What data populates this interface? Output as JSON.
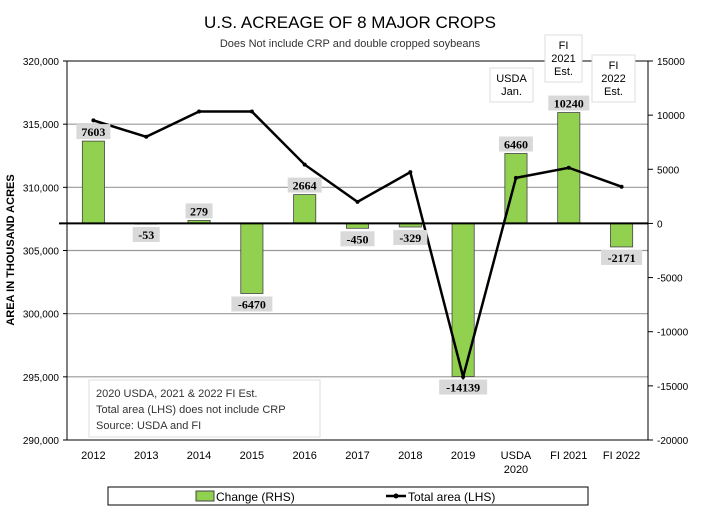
{
  "chart_data": {
    "type": "bar+line",
    "title": "U.S. ACREAGE OF 8 MAJOR CROPS",
    "subtitle": "Does Not include CRP and double cropped soybeans",
    "ylabel": "AREA IN THOUSAND ACRES",
    "categories": [
      "2012",
      "2013",
      "2014",
      "2015",
      "2016",
      "2017",
      "2018",
      "2019",
      "USDA 2020",
      "FI 2021",
      "FI 2022"
    ],
    "series": [
      {
        "name": "Change (RHS)",
        "type": "bar",
        "axis": "right",
        "color": "#92D050",
        "values": [
          7603,
          -53,
          279,
          -6470,
          2664,
          -450,
          -329,
          -14139,
          6460,
          10240,
          -2171
        ]
      },
      {
        "name": "Total area (LHS)",
        "type": "line",
        "axis": "left",
        "color": "#000000",
        "values": [
          315300,
          314000,
          316000,
          316000,
          311800,
          308850,
          311200,
          295000,
          310750,
          311550,
          310050
        ]
      }
    ],
    "ylim_left": [
      290000,
      320000
    ],
    "yticks_left": [
      "290,000",
      "295,000",
      "300,000",
      "305,000",
      "310,000",
      "315,000",
      "320,000"
    ],
    "ylim_right": [
      -20000,
      15000
    ],
    "yticks_right": [
      "-20000",
      "-15000",
      "-10000",
      "-5000",
      "0",
      "5000",
      "10000",
      "15000"
    ],
    "annotations": {
      "usda": [
        "USDA",
        "Jan."
      ],
      "fi2021": [
        "FI",
        "2021",
        "Est."
      ],
      "fi2022": [
        "FI",
        "2022",
        "Est."
      ]
    },
    "note": [
      "2020 USDA,   2021 & 2022 FI Est.",
      "Total area (LHS) does not include CRP",
      "Source: USDA and FI"
    ],
    "legend": "bottom",
    "grid": true
  }
}
